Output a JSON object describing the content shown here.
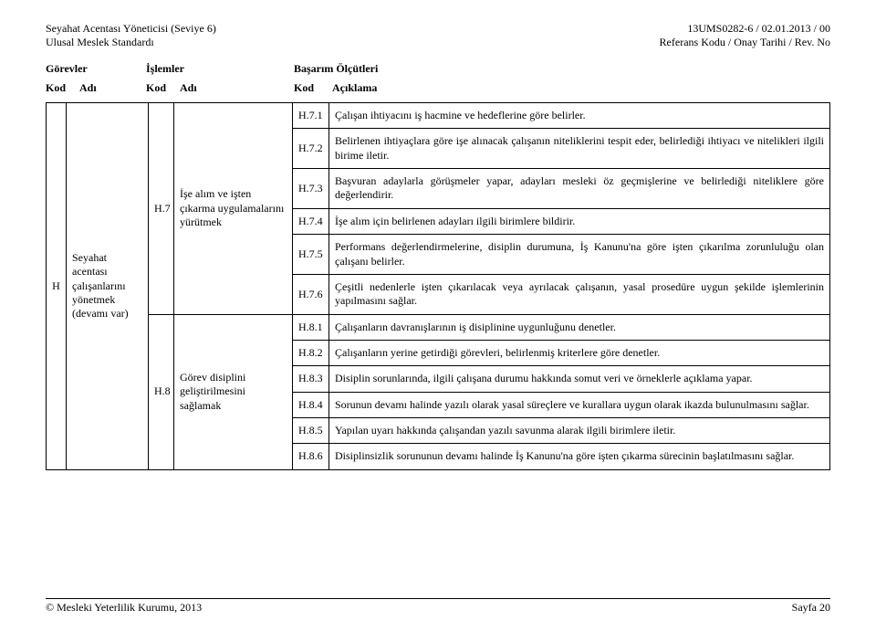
{
  "header": {
    "left1": "Seyahat Acentası Yöneticisi (Seviye 6)",
    "left2": "Ulusal Meslek Standardı",
    "right1": "13UMS0282-6 / 02.01.2013 / 00",
    "right2": "Referans Kodu / Onay Tarihi / Rev. No"
  },
  "section_heads": {
    "gorevler": "Görevler",
    "islemler": "İşlemler",
    "olcutler": "Başarım Ölçütleri"
  },
  "col_heads": {
    "kod": "Kod",
    "adi": "Adı",
    "aciklama": "Açıklama"
  },
  "task": {
    "h_letter": "H",
    "h_text": "Seyahat acentası çalışanlarını yönetmek (devamı var)",
    "h7_code": "H.7",
    "h7_text": "İşe alım ve işten çıkarma uygulamalarını yürütmek",
    "h8_code": "H.8",
    "h8_text": "Görev disiplini geliştirilmesini sağlamak"
  },
  "rows": [
    {
      "k": "H.7.1",
      "d": "Çalışan ihtiyacını iş hacmine ve hedeflerine göre belirler."
    },
    {
      "k": "H.7.2",
      "d": "Belirlenen ihtiyaçlara göre işe alınacak çalışanın niteliklerini tespit eder, belirlediği ihtiyacı ve nitelikleri ilgili birime iletir."
    },
    {
      "k": "H.7.3",
      "d": "Başvuran adaylarla görüşmeler yapar, adayları mesleki öz geçmişlerine ve belirlediği niteliklere göre değerlendirir."
    },
    {
      "k": "H.7.4",
      "d": "İşe alım için belirlenen adayları ilgili birimlere bildirir."
    },
    {
      "k": "H.7.5",
      "d": "Performans değerlendirmelerine, disiplin durumuna, İş Kanunu'na göre işten çıkarılma zorunluluğu olan çalışanı belirler."
    },
    {
      "k": "H.7.6",
      "d": "Çeşitli nedenlerle işten çıkarılacak veya ayrılacak çalışanın, yasal prosedüre uygun şekilde işlemlerinin yapılmasını sağlar."
    },
    {
      "k": "H.8.1",
      "d": "Çalışanların davranışlarının iş disiplinine uygunluğunu denetler."
    },
    {
      "k": "H.8.2",
      "d": "Çalışanların yerine getirdiği görevleri, belirlenmiş kriterlere göre denetler."
    },
    {
      "k": "H.8.3",
      "d": "Disiplin sorunlarında, ilgili çalışana durumu hakkında somut veri ve örneklerle açıklama yapar."
    },
    {
      "k": "H.8.4",
      "d": "Sorunun devamı halinde yazılı olarak yasal süreçlere ve kurallara uygun olarak ikazda bulunulmasını sağlar."
    },
    {
      "k": "H.8.5",
      "d": "Yapılan uyarı hakkında çalışandan yazılı savunma alarak ilgili birimlere iletir."
    },
    {
      "k": "H.8.6",
      "d": "Disiplinsizlik sorununun devamı halinde İş Kanunu'na göre işten çıkarma sürecinin başlatılmasını sağlar."
    }
  ],
  "footer": {
    "left": "© Mesleki Yeterlilik Kurumu, 2013",
    "right": "Sayfa 20"
  }
}
